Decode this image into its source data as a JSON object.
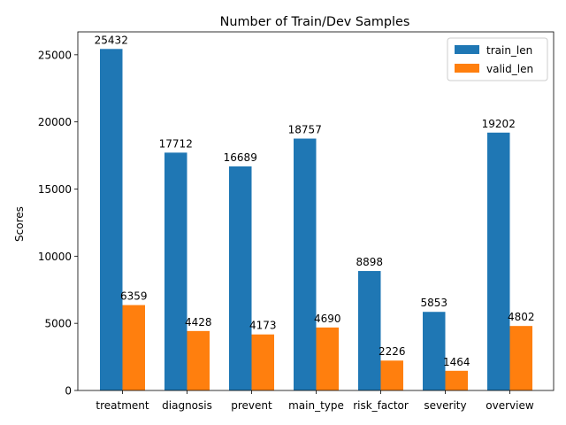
{
  "chart_data": {
    "type": "bar",
    "title": "Number of Train/Dev Samples",
    "xlabel": "",
    "ylabel": "Scores",
    "categories": [
      "treatment",
      "diagnosis",
      "prevent",
      "main_type",
      "risk_factor",
      "severity",
      "overview"
    ],
    "series": [
      {
        "name": "train_len",
        "color": "#1f77b4",
        "values": [
          25432,
          17712,
          16689,
          18757,
          8898,
          5853,
          19202
        ]
      },
      {
        "name": "valid_len",
        "color": "#ff7f0e",
        "values": [
          6359,
          4428,
          4173,
          4690,
          2226,
          1464,
          4802
        ]
      }
    ],
    "ylim": [
      0,
      26704
    ],
    "yticks": [
      0,
      5000,
      10000,
      15000,
      20000,
      25000
    ],
    "grid": false,
    "legend_position": "top-right"
  }
}
